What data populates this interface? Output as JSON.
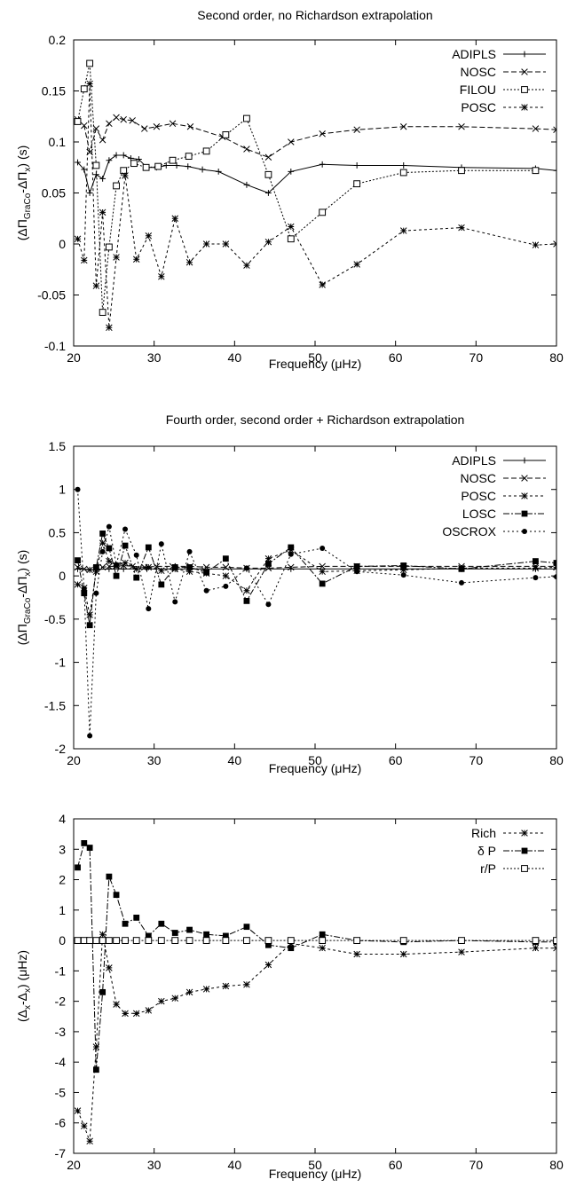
{
  "chart_data": [
    {
      "type": "line",
      "title": "Second order, no Richardson extrapolation",
      "xlabel": "Frequency (μHz)",
      "ylabel": "(ΔΠGraCo-ΔΠx) (s)",
      "ylabel_parts": {
        "open": "(ΔΠ",
        "sub1": "GraCo",
        "mid": "-ΔΠ",
        "sub2": "x",
        "close": ") (s)"
      },
      "xlim": [
        20,
        80
      ],
      "ylim": [
        -0.1,
        0.2
      ],
      "xticks": [
        20,
        30,
        40,
        50,
        60,
        70,
        80
      ],
      "xtick_labels": [
        "20",
        "30",
        "40",
        "50",
        "60",
        "70",
        "80"
      ],
      "yticks": [
        -0.1,
        -0.05,
        0,
        0.05,
        0.1,
        0.15,
        0.2
      ],
      "ytick_labels": [
        "-0.1",
        "-0.05",
        "0",
        "0.05",
        "0.1",
        "0.15",
        "0.2"
      ],
      "grid": false,
      "legend_position": "top-right",
      "series": [
        {
          "name": "ADIPLS",
          "dash": "",
          "marker": "plus",
          "x": [
            20.5,
            21.3,
            22.0,
            22.8,
            23.6,
            24.4,
            25.3,
            26.2,
            27.1,
            28.1,
            29.1,
            30.3,
            31.5,
            32.8,
            34.2,
            36.0,
            38.0,
            41.5,
            44.2,
            47.0,
            50.9,
            55.2,
            61.0,
            68.2,
            77.4,
            80.0
          ],
          "y": [
            0.08,
            0.073,
            0.05,
            0.068,
            0.064,
            0.082,
            0.087,
            0.087,
            0.084,
            0.083,
            0.075,
            0.075,
            0.077,
            0.077,
            0.076,
            0.073,
            0.071,
            0.058,
            0.05,
            0.071,
            0.078,
            0.077,
            0.077,
            0.075,
            0.074,
            0.072
          ]
        },
        {
          "name": "NOSC",
          "dash": "6,3",
          "marker": "x",
          "x": [
            20.5,
            21.3,
            22.0,
            22.8,
            23.6,
            24.4,
            25.3,
            26.2,
            27.3,
            28.8,
            30.3,
            32.3,
            34.5,
            38.5,
            41.5,
            44.2,
            47.0,
            50.9,
            55.2,
            61.0,
            68.2,
            77.4,
            80.0
          ],
          "y": [
            0.122,
            0.116,
            0.09,
            0.113,
            0.102,
            0.118,
            0.124,
            0.122,
            0.121,
            0.113,
            0.115,
            0.118,
            0.115,
            0.105,
            0.093,
            0.085,
            0.1,
            0.108,
            0.112,
            0.115,
            0.115,
            0.113,
            0.112
          ]
        },
        {
          "name": "FILOU",
          "dash": "2,2",
          "marker": "open-square",
          "x": [
            20.5,
            21.3,
            22.0,
            22.8,
            23.6,
            24.4,
            25.3,
            26.2,
            27.5,
            29.0,
            30.5,
            32.3,
            34.3,
            36.5,
            38.9,
            41.5,
            44.2,
            47.0,
            50.9,
            55.2,
            61.0,
            68.2,
            77.4
          ],
          "y": [
            0.12,
            0.152,
            0.177,
            0.077,
            -0.067,
            -0.003,
            0.057,
            0.072,
            0.079,
            0.075,
            0.076,
            0.082,
            0.086,
            0.091,
            0.107,
            0.123,
            0.068,
            0.005,
            0.031,
            0.059,
            0.07,
            0.072,
            0.072
          ]
        },
        {
          "name": "POSC",
          "dash": "3,3",
          "marker": "star",
          "x": [
            20.5,
            21.3,
            22.0,
            22.8,
            23.6,
            24.4,
            25.3,
            26.4,
            27.8,
            29.3,
            30.9,
            32.6,
            34.4,
            36.5,
            38.9,
            41.5,
            44.2,
            47.0,
            50.9,
            55.2,
            61.0,
            68.2,
            77.4,
            80.0
          ],
          "y": [
            0.005,
            -0.016,
            0.157,
            -0.041,
            0.031,
            -0.082,
            -0.013,
            0.067,
            -0.015,
            0.008,
            -0.032,
            0.025,
            -0.018,
            0.0,
            0.0,
            -0.021,
            0.002,
            0.017,
            -0.04,
            -0.02,
            0.013,
            0.016,
            -0.001,
            0.0
          ]
        }
      ]
    },
    {
      "type": "line",
      "title": "Fourth order, second order + Richardson extrapolation",
      "xlabel": "Frequency (μHz)",
      "ylabel": "(ΔΠGraCo-ΔΠx) (s)",
      "ylabel_parts": {
        "open": "(ΔΠ",
        "sub1": "GraCo",
        "mid": "-ΔΠ",
        "sub2": "x",
        "close": ") (s)"
      },
      "xlim": [
        20,
        80
      ],
      "ylim": [
        -2,
        1.5
      ],
      "xticks": [
        20,
        30,
        40,
        50,
        60,
        70,
        80
      ],
      "xtick_labels": [
        "20",
        "30",
        "40",
        "50",
        "60",
        "70",
        "80"
      ],
      "yticks": [
        -2,
        -1.5,
        -1,
        -0.5,
        0,
        0.5,
        1,
        1.5
      ],
      "ytick_labels": [
        "-2",
        "-1.5",
        "-1",
        "-0.5",
        "0",
        "0.5",
        "1",
        "1.5"
      ],
      "grid": false,
      "legend_position": "top-right",
      "series": [
        {
          "name": "ADIPLS",
          "dash": "",
          "marker": "plus",
          "x": [
            20.5,
            22.0,
            24.4,
            26.2,
            29.1,
            32.8,
            36.0,
            41.5,
            47.0,
            55.2,
            61.0,
            68.2,
            77.4,
            80.0
          ],
          "y": [
            0.08,
            0.07,
            0.08,
            0.08,
            0.08,
            0.08,
            0.08,
            0.08,
            0.08,
            0.08,
            0.08,
            0.08,
            0.08,
            0.08
          ]
        },
        {
          "name": "NOSC",
          "dash": "6,3",
          "marker": "x",
          "x": [
            20.5,
            21.3,
            22.0,
            22.8,
            23.6,
            24.4,
            25.3,
            26.2,
            27.3,
            28.8,
            30.3,
            32.3,
            34.5,
            36.5,
            38.9,
            41.5,
            44.2,
            47.0,
            50.9,
            55.2,
            61.0,
            68.2,
            77.4,
            80.0
          ],
          "y": [
            0.1,
            0.08,
            0.07,
            0.09,
            0.1,
            0.11,
            0.11,
            0.12,
            0.11,
            0.1,
            0.11,
            0.11,
            0.11,
            0.1,
            0.1,
            0.09,
            0.09,
            0.1,
            0.11,
            0.11,
            0.11,
            0.11,
            0.11,
            0.11
          ]
        },
        {
          "name": "POSC",
          "dash": "3,3",
          "marker": "star",
          "x": [
            20.5,
            21.3,
            22.0,
            22.8,
            23.6,
            24.4,
            25.3,
            26.4,
            27.8,
            29.3,
            30.9,
            32.6,
            34.4,
            36.5,
            38.9,
            41.5,
            44.2,
            47.0,
            50.9,
            55.2,
            61.0,
            68.2,
            77.4,
            80.0
          ],
          "y": [
            -0.1,
            -0.14,
            -0.45,
            0.05,
            0.38,
            0.17,
            0.12,
            0.15,
            0.08,
            0.1,
            0.06,
            0.08,
            0.05,
            0.03,
            0.0,
            -0.17,
            0.2,
            0.3,
            0.05,
            0.06,
            0.07,
            0.09,
            0.09,
            0.1
          ]
        },
        {
          "name": "LOSC",
          "dash": "7,2,2,2",
          "marker": "filled-square",
          "x": [
            20.5,
            21.3,
            22.0,
            22.8,
            23.6,
            24.4,
            25.3,
            26.4,
            27.8,
            29.3,
            30.9,
            32.6,
            34.4,
            36.5,
            38.9,
            41.5,
            44.2,
            47.0,
            50.9,
            55.2,
            61.0,
            68.2,
            77.4,
            80.0
          ],
          "y": [
            0.18,
            -0.2,
            -0.57,
            0.1,
            0.49,
            0.32,
            0.0,
            0.35,
            -0.02,
            0.33,
            -0.1,
            0.1,
            0.1,
            0.04,
            0.2,
            -0.29,
            0.14,
            0.33,
            -0.09,
            0.11,
            0.12,
            0.08,
            0.17,
            0.15
          ]
        },
        {
          "name": "OSCROX",
          "dash": "2,3",
          "marker": "dot",
          "x": [
            20.5,
            21.3,
            22.0,
            22.8,
            23.6,
            24.4,
            25.3,
            26.4,
            27.8,
            29.3,
            30.9,
            32.6,
            34.4,
            36.5,
            38.9,
            41.5,
            44.2,
            47.0,
            50.9,
            55.2,
            61.0,
            68.2,
            77.4,
            80.0
          ],
          "y": [
            1.0,
            -0.15,
            -1.85,
            -0.2,
            0.28,
            0.57,
            0.13,
            0.54,
            0.24,
            -0.38,
            0.37,
            -0.3,
            0.28,
            -0.17,
            -0.12,
            0.09,
            -0.33,
            0.25,
            0.32,
            0.05,
            0.01,
            -0.08,
            -0.02,
            -0.01
          ]
        }
      ]
    },
    {
      "type": "line",
      "title": "",
      "xlabel": "Frequency (μHz)",
      "ylabel": "(Δx-Δx) (μHz)",
      "ylabel_parts": {
        "open": "(Δ",
        "sub1": "x",
        "mid": "-Δ",
        "sub2": "x",
        "close": ") (μHz)"
      },
      "xlim": [
        20,
        80
      ],
      "ylim": [
        -7,
        4
      ],
      "xticks": [
        20,
        30,
        40,
        50,
        60,
        70,
        80
      ],
      "xtick_labels": [
        "20",
        "30",
        "40",
        "50",
        "60",
        "70",
        "80"
      ],
      "yticks": [
        -7,
        -6,
        -5,
        -4,
        -3,
        -2,
        -1,
        0,
        1,
        2,
        3,
        4
      ],
      "ytick_labels": [
        "-7",
        "-6",
        "-5",
        "-4",
        "-3",
        "-2",
        "-1",
        "0",
        "1",
        "2",
        "3",
        "4"
      ],
      "grid": false,
      "legend_position": "top-right",
      "series": [
        {
          "name": "Rich",
          "dash": "3,3",
          "marker": "star",
          "x": [
            20.5,
            21.3,
            22.0,
            22.8,
            23.6,
            24.4,
            25.3,
            26.4,
            27.8,
            29.3,
            30.9,
            32.6,
            34.4,
            36.5,
            38.9,
            41.5,
            44.2,
            47.0,
            50.9,
            55.2,
            61.0,
            68.2,
            77.4,
            80.0
          ],
          "y": [
            -5.6,
            -6.1,
            -6.6,
            -3.5,
            0.2,
            -0.9,
            -2.1,
            -2.4,
            -2.4,
            -2.3,
            -2.0,
            -1.9,
            -1.7,
            -1.6,
            -1.5,
            -1.45,
            -0.8,
            -0.1,
            -0.25,
            -0.45,
            -0.45,
            -0.38,
            -0.25,
            -0.25
          ]
        },
        {
          "name": "δ P",
          "dash": "7,2,2,2",
          "marker": "filled-square",
          "x": [
            20.5,
            21.3,
            22.0,
            22.8,
            23.6,
            24.4,
            25.3,
            26.4,
            27.8,
            29.3,
            30.9,
            32.6,
            34.4,
            36.5,
            38.9,
            41.5,
            44.2,
            47.0,
            50.9,
            55.2,
            61.0,
            68.2,
            77.4,
            80.0
          ],
          "y": [
            2.4,
            3.2,
            3.05,
            -4.25,
            -1.7,
            2.1,
            1.5,
            0.55,
            0.75,
            0.15,
            0.55,
            0.25,
            0.35,
            0.2,
            0.15,
            0.45,
            -0.15,
            -0.25,
            0.2,
            0.0,
            -0.05,
            0.0,
            -0.05,
            -0.05
          ]
        },
        {
          "name": "r/P",
          "dash": "2,2",
          "marker": "open-square",
          "x": [
            20.5,
            21.3,
            22.0,
            22.8,
            23.6,
            24.4,
            25.3,
            26.4,
            27.8,
            29.3,
            30.9,
            32.6,
            34.4,
            36.5,
            38.9,
            41.5,
            44.2,
            47.0,
            50.9,
            55.2,
            61.0,
            68.2,
            77.4,
            80.0
          ],
          "y": [
            0,
            0,
            0,
            0,
            0,
            0,
            0,
            0,
            0,
            0,
            0,
            0,
            0,
            0,
            0,
            0,
            0,
            0,
            0,
            0,
            0,
            0,
            0,
            0
          ]
        }
      ]
    }
  ]
}
